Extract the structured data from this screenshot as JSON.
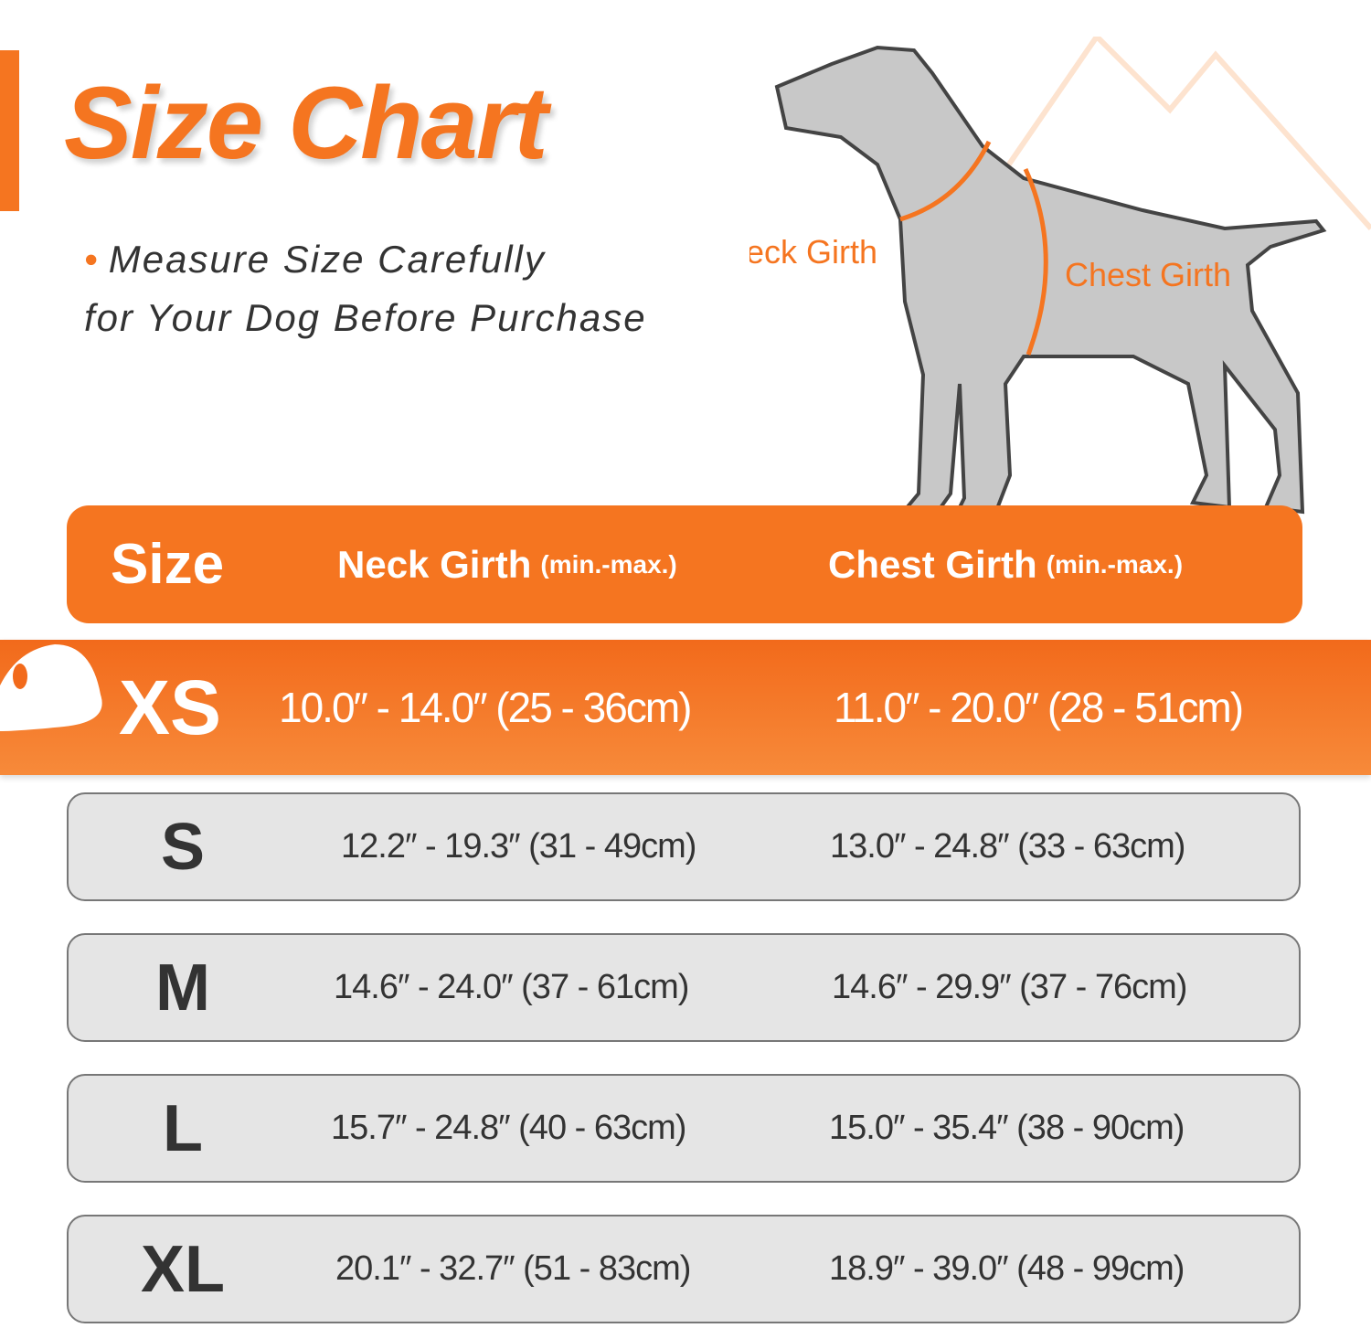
{
  "title": "Size Chart",
  "note": {
    "first": "Measure Size Carefully",
    "rest": "for Your Dog Before Purchase"
  },
  "diagram": {
    "neck_label": "Neck Girth",
    "chest_label": "Chest Girth"
  },
  "colors": {
    "accent": "#f57520",
    "row_bg": "#e5e5e5",
    "text": "#333333"
  },
  "header": {
    "size": "Size",
    "neck": "Neck Girth",
    "neck_unit": "(min.-max.)",
    "chest": "Chest Girth",
    "chest_unit": "(min.-max.)"
  },
  "rows": [
    {
      "size": "XS",
      "neck": "10.0″ - 14.0″ (25 - 36cm)",
      "chest": "11.0″ - 20.0″ (28 - 51cm)",
      "highlighted": true
    },
    {
      "size": "S",
      "neck": "12.2″ - 19.3″ (31 - 49cm)",
      "chest": "13.0″ - 24.8″ (33 - 63cm)"
    },
    {
      "size": "M",
      "neck": "14.6″ - 24.0″ (37 - 61cm)",
      "chest": "14.6″ - 29.9″ (37 - 76cm)"
    },
    {
      "size": "L",
      "neck": "15.7″ - 24.8″ (40 - 63cm)",
      "chest": "15.0″ - 35.4″ (38 - 90cm)"
    },
    {
      "size": "XL",
      "neck": "20.1″ - 32.7″ (51 - 83cm)",
      "chest": "18.9″ - 39.0″ (48 - 99cm)"
    }
  ]
}
